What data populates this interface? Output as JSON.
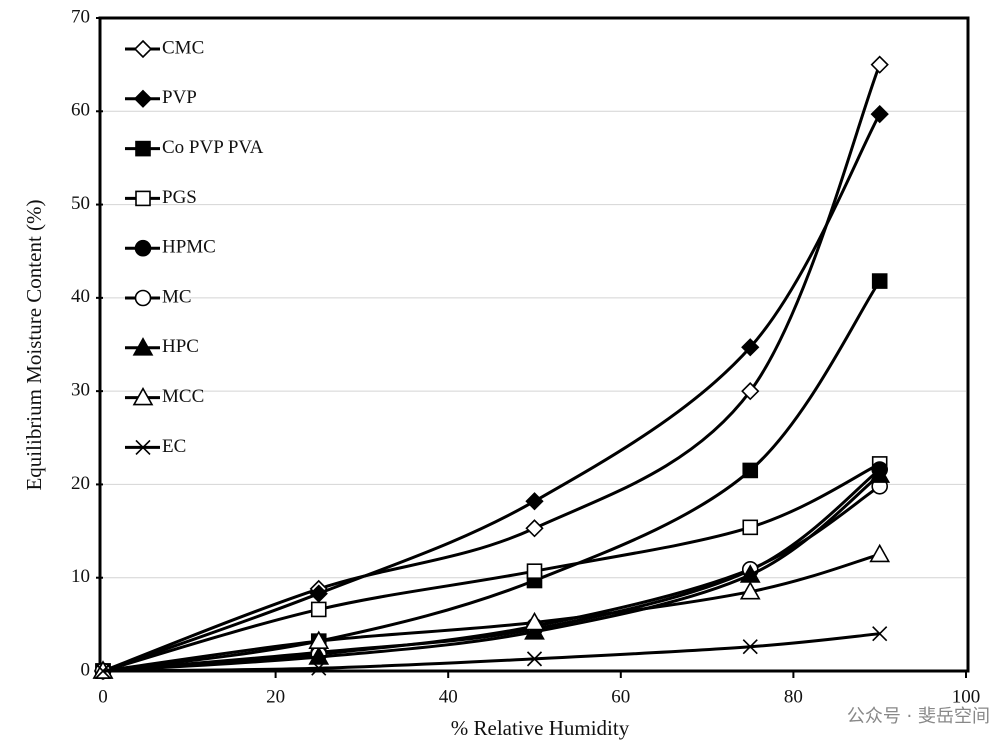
{
  "chart_data": {
    "type": "line",
    "smooth": true,
    "xlabel": "% Relative Humidity",
    "ylabel": "Equilibrium Moisture Content (%)",
    "x": [
      0,
      25,
      50,
      75,
      90
    ],
    "xlim": [
      0,
      100
    ],
    "xticks": [
      0,
      20,
      40,
      60,
      80,
      100
    ],
    "ylim": [
      0,
      70
    ],
    "yticks": [
      0,
      10,
      20,
      30,
      40,
      50,
      60,
      70
    ],
    "grid": true,
    "legend": "upper left",
    "series": [
      {
        "name": "CMC",
        "color": "#000000",
        "marker": "diamond",
        "filled": false,
        "values": [
          0,
          8.8,
          15.3,
          30,
          65
        ]
      },
      {
        "name": "PVP",
        "color": "#000000",
        "marker": "diamond",
        "filled": true,
        "values": [
          0,
          8.3,
          18.2,
          34.7,
          59.7
        ]
      },
      {
        "name": "Co PVP PVA",
        "color": "#000000",
        "marker": "square",
        "filled": true,
        "values": [
          0,
          3.2,
          9.7,
          21.5,
          41.8
        ]
      },
      {
        "name": "PGS",
        "color": "#000000",
        "marker": "square",
        "filled": false,
        "values": [
          0,
          6.6,
          10.7,
          15.4,
          22.2
        ]
      },
      {
        "name": "HPMC",
        "color": "#000000",
        "marker": "circle",
        "filled": true,
        "values": [
          0,
          2.0,
          4.5,
          10.8,
          21.6
        ]
      },
      {
        "name": "MC",
        "color": "#000000",
        "marker": "circle",
        "filled": false,
        "values": [
          0,
          1.8,
          4.8,
          10.9,
          19.8
        ]
      },
      {
        "name": "HPC",
        "color": "#000000",
        "marker": "triangle",
        "filled": true,
        "values": [
          0,
          1.5,
          4.2,
          10.3,
          21.0
        ]
      },
      {
        "name": "MCC",
        "color": "#000000",
        "marker": "triangle",
        "filled": false,
        "values": [
          0,
          3.2,
          5.2,
          8.5,
          12.5
        ]
      },
      {
        "name": "EC",
        "color": "#000000",
        "marker": "x",
        "filled": false,
        "values": [
          0,
          0.3,
          1.3,
          2.6,
          4.0
        ]
      }
    ]
  },
  "watermark": "公众号 · 斐岳空间"
}
